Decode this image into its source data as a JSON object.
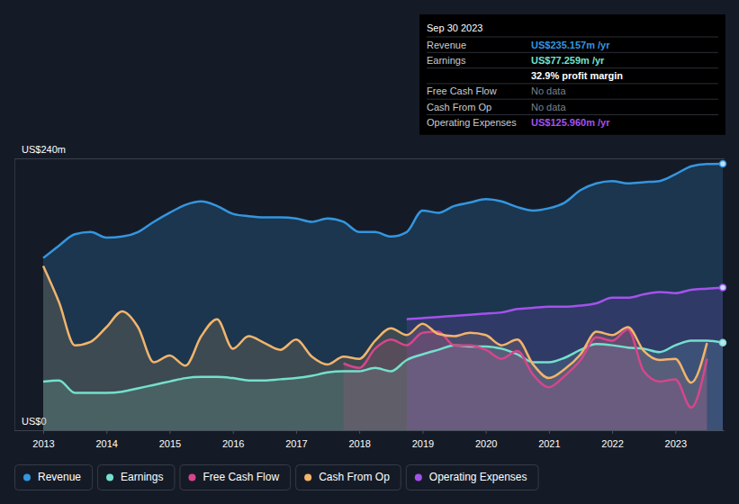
{
  "chart_data": {
    "type": "area",
    "x": [
      2013,
      2013.25,
      2013.5,
      2013.75,
      2014,
      2014.25,
      2014.5,
      2014.75,
      2015,
      2015.25,
      2015.5,
      2015.75,
      2016,
      2016.25,
      2016.5,
      2016.75,
      2017,
      2017.25,
      2017.5,
      2017.75,
      2018,
      2018.25,
      2018.5,
      2018.75,
      2019,
      2019.25,
      2019.5,
      2019.75,
      2020,
      2020.25,
      2020.5,
      2020.75,
      2021,
      2021.25,
      2021.5,
      2021.75,
      2022,
      2022.25,
      2022.5,
      2022.75,
      2023,
      2023.25,
      2023.5,
      2023.75
    ],
    "xlim": [
      2013,
      2023.75
    ],
    "xticks": [
      2013,
      2014,
      2015,
      2016,
      2017,
      2018,
      2019,
      2020,
      2021,
      2022,
      2023
    ],
    "ylim": [
      0,
      240
    ],
    "yticks": [
      {
        "value": 0,
        "label": "US$0"
      },
      {
        "value": 240,
        "label": "US$240m"
      }
    ],
    "grid": true,
    "legend": "bottom-left",
    "series": [
      {
        "name": "Revenue",
        "color": "#3496e0",
        "marker": "circle",
        "values": [
          152,
          163,
          173,
          175,
          170,
          171,
          175,
          184,
          192,
          199,
          202,
          198,
          191,
          189,
          188,
          188,
          187,
          184,
          187,
          184,
          175,
          175,
          171,
          175,
          194,
          192,
          198,
          201,
          204,
          202,
          197,
          194,
          196,
          201,
          212,
          218,
          220,
          218,
          219,
          220,
          226,
          233,
          235,
          235.157
        ]
      },
      {
        "name": "Earnings",
        "color": "#74e0cd",
        "marker": "circle",
        "values": [
          43,
          44,
          33,
          33,
          33,
          34,
          37,
          40,
          43,
          46,
          47,
          47,
          46,
          44,
          44,
          45,
          46,
          48,
          51,
          52,
          52,
          55,
          52,
          62,
          67,
          71,
          75,
          74,
          74,
          72,
          67,
          60,
          60,
          64,
          71,
          76,
          75,
          73,
          72,
          69,
          75,
          79,
          79,
          77.259
        ]
      },
      {
        "name": "Free Cash Flow",
        "color": "#d6468c",
        "values": [
          null,
          null,
          null,
          null,
          null,
          null,
          null,
          null,
          null,
          null,
          null,
          null,
          null,
          null,
          null,
          null,
          null,
          null,
          null,
          59,
          55,
          72,
          80,
          75,
          86,
          87,
          75,
          75,
          71,
          63,
          70,
          49,
          38,
          48,
          62,
          82,
          79,
          89,
          52,
          43,
          45,
          20,
          63,
          null
        ]
      },
      {
        "name": "Cash From Op",
        "color": "#f2b46c",
        "values": [
          145,
          113,
          75,
          78,
          91,
          105,
          91,
          60,
          66,
          57,
          83,
          98,
          72,
          83,
          77,
          71,
          80,
          65,
          58,
          65,
          63,
          79,
          90,
          84,
          94,
          85,
          83,
          86,
          84,
          75,
          80,
          58,
          46,
          54,
          67,
          87,
          84,
          91,
          70,
          62,
          63,
          42,
          77,
          null
        ]
      },
      {
        "name": "Operating Expenses",
        "color": "#a452ec",
        "marker": "circle",
        "values": [
          null,
          null,
          null,
          null,
          null,
          null,
          null,
          null,
          null,
          null,
          null,
          null,
          null,
          null,
          null,
          null,
          null,
          null,
          null,
          null,
          null,
          null,
          null,
          98,
          99,
          100,
          101,
          102,
          103,
          104,
          107,
          108,
          109,
          109,
          110,
          112,
          117,
          117,
          120,
          122,
          121,
          124,
          125,
          125.96
        ]
      }
    ],
    "annotations": {
      "date": "Sep 30 2023",
      "rows": [
        {
          "label": "Revenue",
          "value": "US$235.157m /yr",
          "color": "#3496e0"
        },
        {
          "label": "Earnings",
          "value": "US$77.259m /yr",
          "color": "#74e0cd"
        },
        {
          "value": "32.9% profit margin",
          "color": "#ffffff"
        },
        {
          "label": "Free Cash Flow",
          "value": "No data",
          "color": "#7b818b"
        },
        {
          "label": "Cash From Op",
          "value": "No data",
          "color": "#7b818b"
        },
        {
          "label": "Operating Expenses",
          "value": "US$125.960m /yr",
          "color": "#a452ec"
        }
      ]
    }
  }
}
